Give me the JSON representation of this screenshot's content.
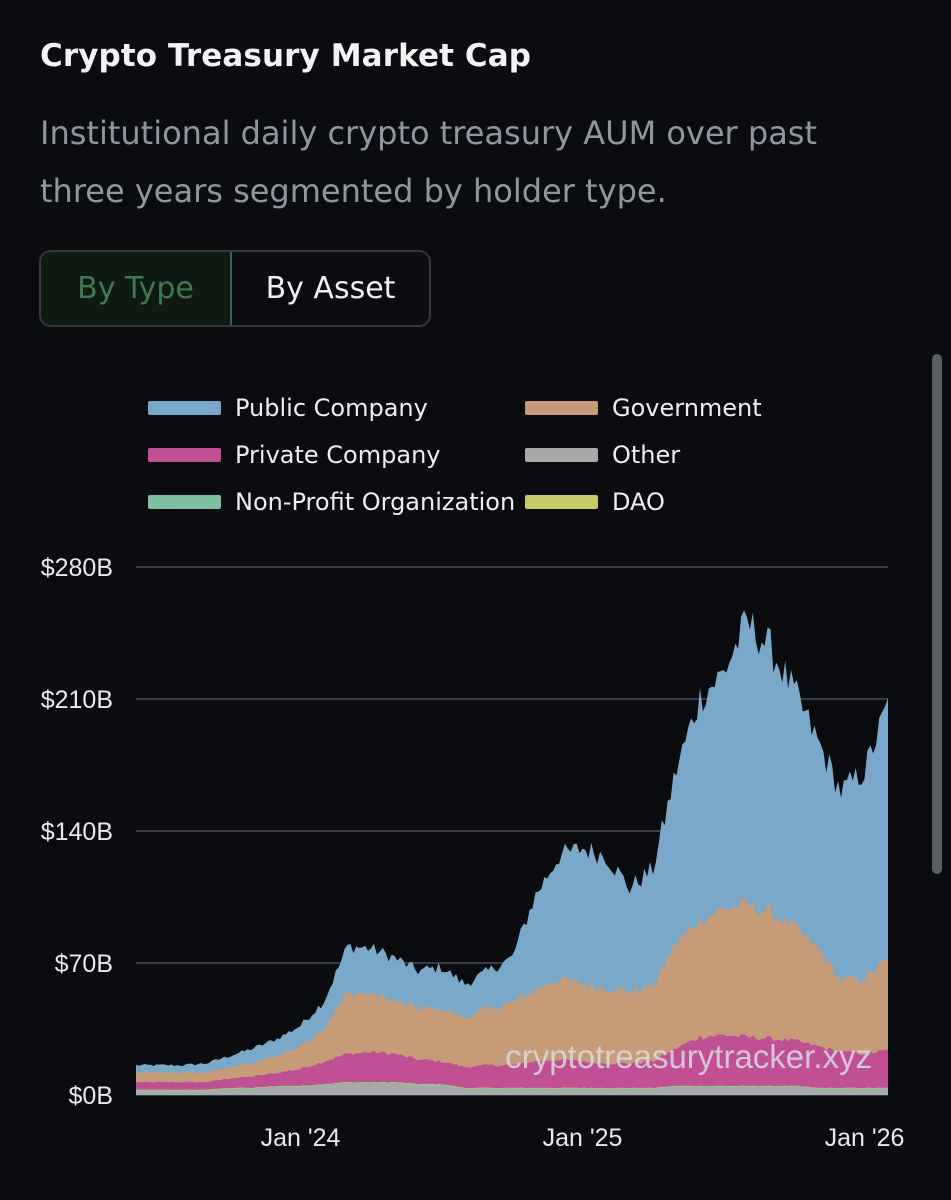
{
  "header": {
    "title": "Crypto Treasury Market Cap",
    "subtitle": "Institutional daily crypto treasury AUM over past three years segmented by holder type."
  },
  "toggle": {
    "by_type": "By Type",
    "by_asset": "By Asset",
    "selected": "By Type"
  },
  "chart_data": {
    "type": "area",
    "stacked": true,
    "x_unit": "month",
    "x": [
      "2023-06",
      "2023-07",
      "2023-08",
      "2023-09",
      "2023-10",
      "2023-11",
      "2023-12",
      "2024-01",
      "2024-02",
      "2024-03",
      "2024-04",
      "2024-05",
      "2024-06",
      "2024-07",
      "2024-08",
      "2024-09",
      "2024-10",
      "2024-11",
      "2024-12",
      "2025-01",
      "2025-02",
      "2025-03",
      "2025-04",
      "2025-05",
      "2025-06",
      "2025-07",
      "2025-08",
      "2025-09",
      "2025-10",
      "2025-11",
      "2025-12",
      "2026-01",
      "2026-02"
    ],
    "series": [
      {
        "name": "Other",
        "color": "#a9a9ac",
        "values": [
          2,
          2,
          2,
          2,
          3,
          3,
          4,
          4,
          5,
          6,
          6,
          6,
          5,
          5,
          3,
          3,
          3,
          3,
          3,
          3,
          3,
          3,
          3,
          4,
          4,
          4,
          4,
          4,
          4,
          3,
          3,
          3,
          3
        ]
      },
      {
        "name": "Non-Profit Organization",
        "color": "#7fc0a1",
        "values": [
          0.5,
          0.5,
          0.5,
          0.5,
          0.5,
          0.5,
          0.5,
          0.5,
          0.5,
          0.5,
          0.5,
          0.5,
          0.5,
          0.5,
          0.5,
          0.5,
          0.5,
          0.5,
          0.5,
          0.5,
          0.5,
          0.5,
          0.5,
          0.5,
          0.5,
          0.5,
          0.5,
          0.5,
          0.5,
          0.5,
          0.5,
          0.5,
          0.5
        ]
      },
      {
        "name": "DAO",
        "color": "#c9c96a",
        "values": [
          0.3,
          0.3,
          0.3,
          0.3,
          0.3,
          0.3,
          0.3,
          0.3,
          0.3,
          0.3,
          0.3,
          0.3,
          0.3,
          0.3,
          0.3,
          0.3,
          0.3,
          0.3,
          0.3,
          0.3,
          0.3,
          0.3,
          0.3,
          0.3,
          0.3,
          0.3,
          0.3,
          0.3,
          0.3,
          0.3,
          0.3,
          0.3,
          0.3
        ]
      },
      {
        "name": "Private Company",
        "color": "#c04f93",
        "values": [
          4,
          4,
          4,
          4,
          5,
          6,
          7,
          9,
          12,
          15,
          16,
          15,
          13,
          12,
          11,
          12,
          12,
          14,
          15,
          14,
          13,
          13,
          14,
          20,
          26,
          27,
          26,
          25,
          24,
          22,
          19,
          18,
          20
        ]
      },
      {
        "name": "Government",
        "color": "#c69b77",
        "values": [
          5,
          5,
          5,
          5,
          6,
          7,
          9,
          12,
          18,
          32,
          31,
          28,
          27,
          28,
          26,
          30,
          33,
          38,
          43,
          41,
          40,
          38,
          40,
          56,
          62,
          67,
          70,
          67,
          60,
          52,
          38,
          40,
          48
        ]
      },
      {
        "name": "Public Company",
        "color": "#7aa8c9",
        "values": [
          4,
          4,
          4,
          5,
          6,
          8,
          9,
          11,
          14,
          25,
          24,
          23,
          20,
          22,
          18,
          20,
          24,
          50,
          65,
          72,
          70,
          55,
          62,
          92,
          118,
          125,
          150,
          140,
          125,
          110,
          100,
          110,
          135
        ]
      }
    ],
    "legend_order": [
      "Public Company",
      "Government",
      "Private Company",
      "Other",
      "Non-Profit Organization",
      "DAO"
    ],
    "ylim": [
      0,
      280
    ],
    "y_ticks": [
      "$0B",
      "$70B",
      "$140B",
      "$210B",
      "$280B"
    ],
    "y_tick_values": [
      0,
      70,
      140,
      210,
      280
    ],
    "x_ticks": [
      "Jan '24",
      "Jan '25",
      "Jan '26"
    ],
    "x_tick_values": [
      "2024-01",
      "2025-01",
      "2026-01"
    ],
    "grid": true,
    "legend_position": "top",
    "watermark": "cryptotreasurytracker.xyz"
  }
}
